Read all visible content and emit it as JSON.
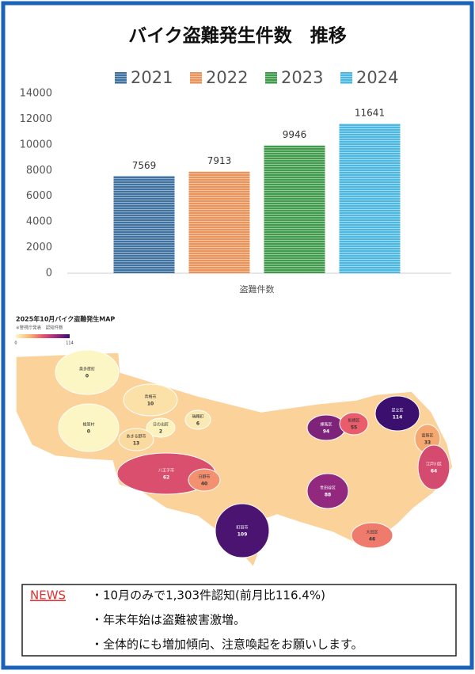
{
  "chart_data": [
    {
      "type": "bar",
      "title": "バイク盗難発生件数　推移",
      "categories": [
        "盗難件数"
      ],
      "series": [
        {
          "name": "2021",
          "color": "#3f72a0",
          "values": [
            7569
          ]
        },
        {
          "name": "2022",
          "color": "#ea935a",
          "values": [
            7913
          ]
        },
        {
          "name": "2023",
          "color": "#3f9a4b",
          "values": [
            9946
          ]
        },
        {
          "name": "2024",
          "color": "#4cb8e2",
          "values": [
            11641
          ]
        }
      ],
      "ylim": [
        0,
        14000
      ],
      "yticks": [
        0,
        2000,
        4000,
        6000,
        8000,
        10000,
        12000,
        14000
      ],
      "legend": "top"
    },
    {
      "type": "choropleth",
      "title": "2025年10月バイク盗難発生MAP",
      "subtitle": "※警視庁発表　認知件数",
      "regions": [
        "奥多摩町",
        "檜原村",
        "青梅市",
        "日の出町",
        "あきる野市",
        "瑞穂町",
        "八王子市",
        "日野市",
        "町田市",
        "練馬区",
        "板橋区",
        "足立区",
        "葛飾区",
        "江戸川区",
        "世田谷区",
        "大田区"
      ],
      "values": [
        0,
        0,
        10,
        2,
        13,
        6,
        62,
        40,
        109,
        94,
        55,
        114,
        33,
        64,
        88,
        46
      ],
      "clim": [
        0,
        114
      ],
      "cticks": [
        0,
        114
      ],
      "colormap": [
        "#fcf6c4",
        "#f9b872",
        "#e8556a",
        "#9b2b7f",
        "#3a0f6e"
      ]
    }
  ],
  "news": {
    "label": "NEWS",
    "items": [
      "・10月のみで1,303件認知(前月比116.4%)",
      "・年末年始は盗難被害激増。",
      "・全体的にも増加傾向、注意喚起をお願いします。"
    ]
  }
}
